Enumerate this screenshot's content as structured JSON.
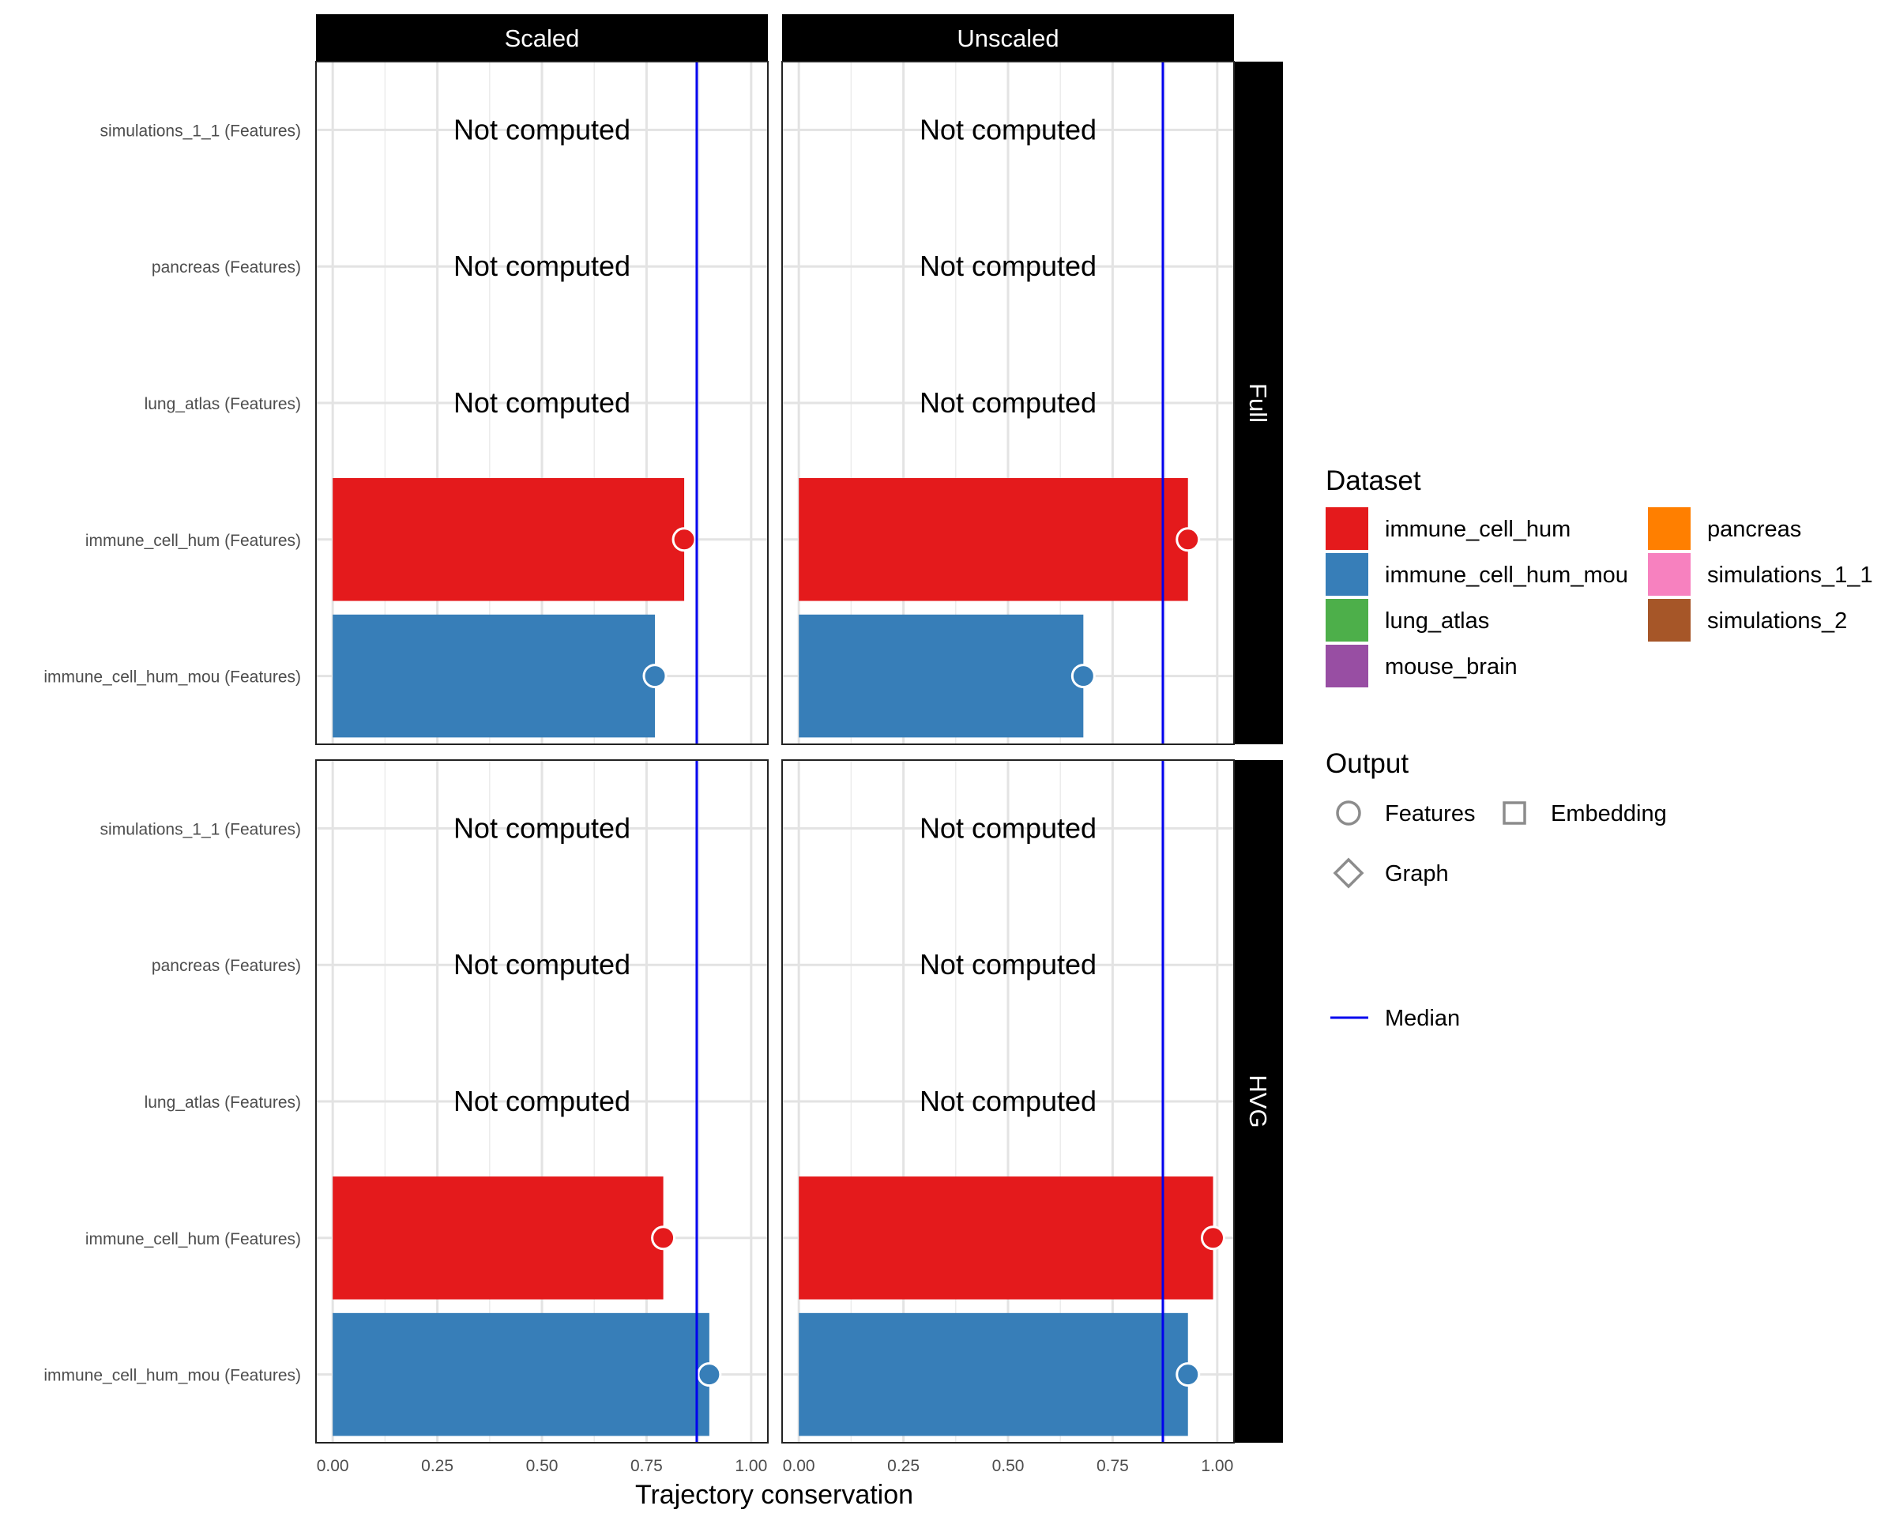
{
  "chart_data": {
    "type": "bar",
    "title": "",
    "xlabel": "Trajectory conservation",
    "ylabel": "",
    "xlim": [
      -0.04,
      1.04
    ],
    "x_ticks": [
      "0.00",
      "0.25",
      "0.50",
      "0.75",
      "1.00"
    ],
    "x_tick_values": [
      0,
      0.25,
      0.5,
      0.75,
      1.0
    ],
    "categories": [
      "simulations_1_1 (Features)",
      "pancreas (Features)",
      "lung_atlas (Features)",
      "immune_cell_hum (Features)",
      "immune_cell_hum_mou (Features)"
    ],
    "column_facets": [
      "Scaled",
      "Unscaled"
    ],
    "row_facets": [
      "Full",
      "HVG"
    ],
    "median": 0.87,
    "not_computed_label": "Not computed",
    "panels": [
      {
        "col": "Scaled",
        "row": "Full",
        "values": [
          null,
          null,
          null,
          0.84,
          0.77
        ]
      },
      {
        "col": "Unscaled",
        "row": "Full",
        "values": [
          null,
          null,
          null,
          0.93,
          0.68
        ]
      },
      {
        "col": "Scaled",
        "row": "HVG",
        "values": [
          null,
          null,
          null,
          0.79,
          0.9
        ]
      },
      {
        "col": "Unscaled",
        "row": "HVG",
        "values": [
          null,
          null,
          null,
          0.99,
          0.93
        ]
      }
    ],
    "category_colors": [
      "#F781BF",
      "#FF7F00",
      "#4DAF4A",
      "#E41A1C",
      "#377EB8"
    ],
    "median_color": "#0000EE",
    "legend": {
      "dataset_title": "Dataset",
      "datasets": [
        {
          "name": "immune_cell_hum",
          "color": "#E41A1C"
        },
        {
          "name": "immune_cell_hum_mou",
          "color": "#377EB8"
        },
        {
          "name": "lung_atlas",
          "color": "#4DAF4A"
        },
        {
          "name": "mouse_brain",
          "color": "#984EA3"
        },
        {
          "name": "pancreas",
          "color": "#FF7F00"
        },
        {
          "name": "simulations_1_1",
          "color": "#F781BF"
        },
        {
          "name": "simulations_2",
          "color": "#A65628"
        }
      ],
      "output_title": "Output",
      "outputs": [
        {
          "name": "Features",
          "shape": "circle"
        },
        {
          "name": "Embedding",
          "shape": "square"
        },
        {
          "name": "Graph",
          "shape": "diamond"
        }
      ],
      "median_label": "Median"
    }
  }
}
